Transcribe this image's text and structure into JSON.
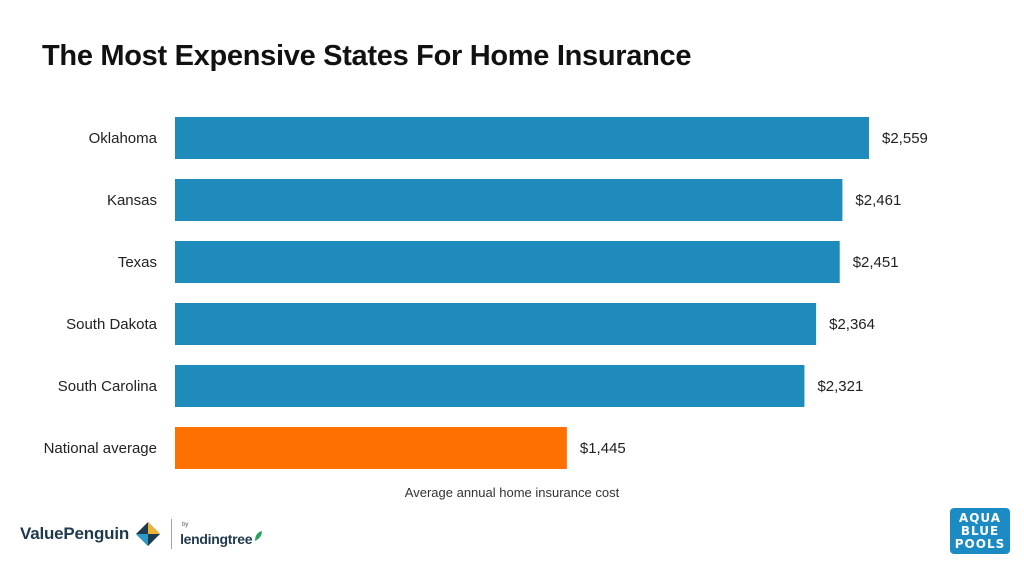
{
  "chart_data": {
    "type": "bar",
    "orientation": "horizontal",
    "title": "The Most Expensive States For Home Insurance",
    "xlabel": "Average annual home insurance cost",
    "ylabel": "",
    "categories": [
      "Oklahoma",
      "Kansas",
      "Texas",
      "South Dakota",
      "South Carolina",
      "National average"
    ],
    "values": [
      2559,
      2461,
      2451,
      2364,
      2321,
      1445
    ],
    "value_labels": [
      "$2,559",
      "$2,461",
      "$2,451",
      "$2,364",
      "$2,321",
      "$1,445"
    ],
    "xlim": [
      0,
      2559
    ],
    "grid": false,
    "legend": "none",
    "colors": {
      "state": "#1e8bbb",
      "highlight": "#ff7003"
    },
    "highlight_category": "National average"
  },
  "footer": {
    "brand": "ValuePenguin",
    "by": "by",
    "partner": "lendingtree",
    "brand_icon": "valuepenguin-diamond-icon",
    "partner_icon": "lendingtree-leaf-icon"
  },
  "watermark": {
    "lines": [
      "AQUA",
      "BLUE",
      "POOLS"
    ]
  }
}
